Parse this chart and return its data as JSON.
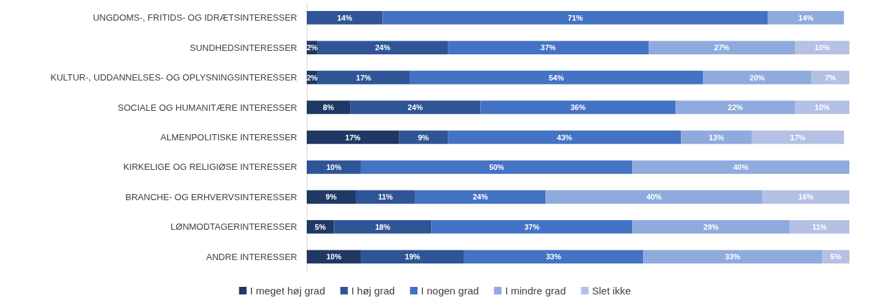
{
  "chart_data": {
    "type": "bar",
    "orientation": "horizontal",
    "stacked": true,
    "legend": "bottom",
    "grid": false,
    "tick_labels": "y",
    "xlim": [
      0,
      100
    ],
    "categories": [
      "UNGDOMS-, FRITIDS- OG IDRÆTSINTERESSER",
      "SUNDHEDSINTERESSER",
      "KULTUR-, UDDANNELSES- OG OPLYSNINGSINTERESSER",
      "SOCIALE OG HUMANITÆRE INTERESSER",
      "ALMENPOLITISKE INTERESSER",
      "KIRKELIGE OG RELIGIØSE INTERESSER",
      "BRANCHE- OG ERHVERVSINTERESSER",
      "LØNMODTAGERINTERESSER",
      "ANDRE INTERESSER"
    ],
    "series": [
      {
        "name": "I meget høj grad",
        "color": "#203864",
        "values": [
          null,
          2,
          2,
          8,
          17,
          null,
          9,
          5,
          10
        ],
        "value_labels": [
          null,
          "2%",
          "2%",
          "8%",
          "17%",
          null,
          "9%",
          "5%",
          "10%"
        ]
      },
      {
        "name": "I høj grad",
        "color": "#2f5597",
        "values": [
          14,
          24,
          17,
          24,
          9,
          10,
          11,
          18,
          19
        ],
        "value_labels": [
          "14%",
          "24%",
          "17%",
          "24%",
          "9%",
          "10%",
          "11%",
          "18%",
          "19%"
        ]
      },
      {
        "name": "I nogen grad",
        "color": "#4472c4",
        "values": [
          71,
          37,
          54,
          36,
          43,
          50,
          24,
          37,
          33
        ],
        "value_labels": [
          "71%",
          "37%",
          "54%",
          "36%",
          "43%",
          "50%",
          "24%",
          "37%",
          "33%"
        ]
      },
      {
        "name": "I mindre grad",
        "color": "#8faadc",
        "values": [
          14,
          27,
          20,
          22,
          13,
          40,
          40,
          29,
          33
        ],
        "value_labels": [
          "14%",
          "27%",
          "20%",
          "22%",
          "13%",
          "40%",
          "40%",
          "29%",
          "33%"
        ]
      },
      {
        "name": "Slet ikke",
        "color": "#b4c0e4",
        "values": [
          null,
          10,
          7,
          10,
          17,
          null,
          16,
          11,
          5
        ],
        "value_labels": [
          null,
          "10%",
          "7%",
          "10%",
          "17%",
          null,
          "16%",
          "11%",
          "5%"
        ]
      }
    ]
  }
}
